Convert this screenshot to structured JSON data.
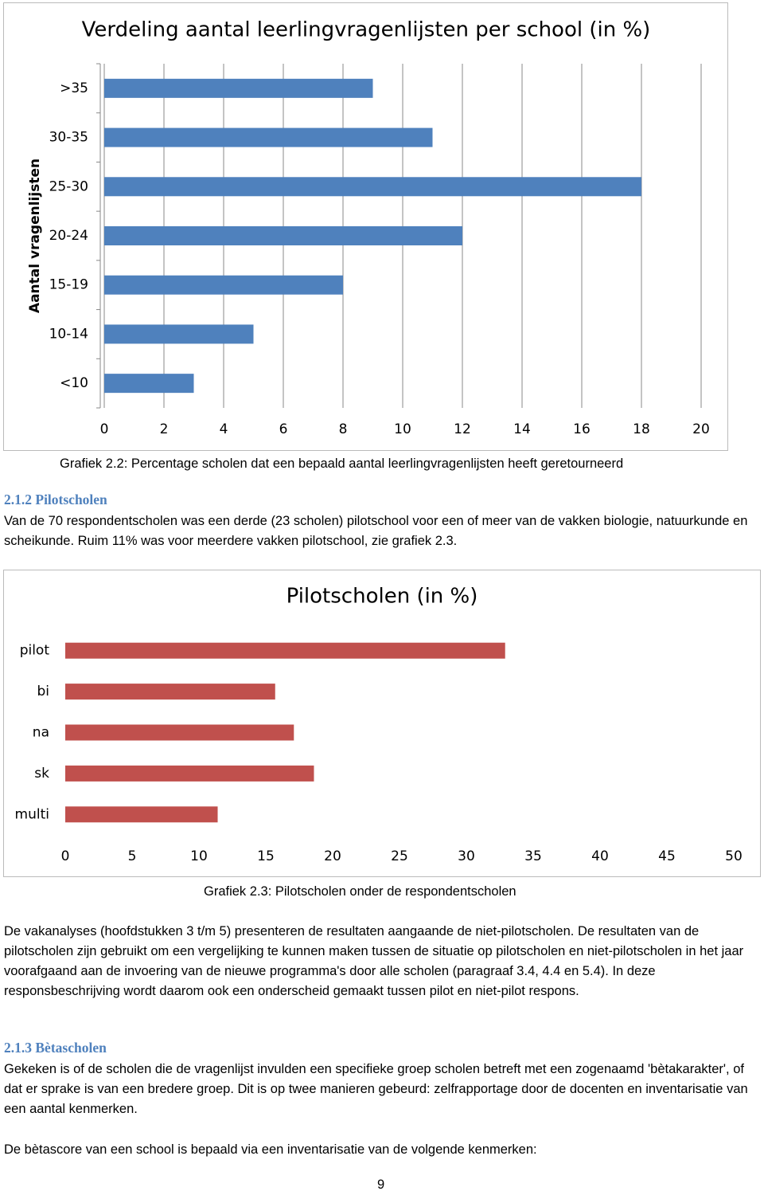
{
  "chart_data": [
    {
      "type": "bar",
      "orientation": "horizontal",
      "title": "Verdeling aantal leerlingvragenlijsten per school (in %)",
      "y_label": "Aantal vragenlijsten",
      "categories": [
        ">35",
        "30-35",
        "25-30",
        "20-24",
        "15-19",
        "10-14",
        "<10"
      ],
      "values": [
        9,
        11,
        18,
        12,
        8,
        5,
        3
      ],
      "color": "#4f81bd",
      "xlim": [
        0,
        20
      ],
      "xticks": [
        0,
        2,
        4,
        6,
        8,
        10,
        12,
        14,
        16,
        18,
        20
      ],
      "grid": true
    },
    {
      "type": "bar",
      "orientation": "horizontal",
      "title": "Pilotscholen (in %)",
      "categories": [
        "pilot",
        "bi",
        "na",
        "sk",
        "multi"
      ],
      "values": [
        32.9,
        15.7,
        17.1,
        18.6,
        11.4
      ],
      "color": "#c0504d",
      "xlim": [
        0,
        50
      ],
      "xticks": [
        0,
        5,
        10,
        15,
        20,
        25,
        30,
        35,
        40,
        45,
        50
      ],
      "grid": false
    }
  ],
  "captions": [
    "Grafiek 2.2: Percentage scholen dat een bepaald aantal leerlingvragenlijsten heeft geretourneerd",
    "Grafiek 2.3: Pilotscholen onder de respondentscholen"
  ],
  "section_pilot": {
    "heading": "2.1.2 Pilotscholen",
    "paragraphs": [
      "Van de 70 respondentscholen was een derde (23 scholen) pilotschool voor een of meer van de vakken biologie, natuurkunde en scheikunde. Ruim 11% was voor meerdere vakken pilotschool, zie grafiek 2.3.",
      "De vakanalyses (hoofdstukken 3 t/m 5) presenteren de resultaten aangaande de niet-pilotscholen. De resultaten van de pilotscholen zijn gebruikt om een vergelijking te kunnen maken tussen de situatie op pilotscholen en niet-pilotscholen in het jaar voorafgaand aan de invoering van de nieuwe programma's door alle scholen (paragraaf 3.4, 4.4 en 5.4). In deze responsbeschrijving wordt daarom ook een onderscheid gemaakt tussen pilot en niet-pilot respons."
    ]
  },
  "section_beta": {
    "heading": "2.1.3 Bètascholen",
    "paragraphs": [
      "Gekeken is of de scholen die de vragenlijst invulden een specifieke groep scholen betreft met een zogenaamd 'bètakarakter', of dat er sprake is van een bredere groep. Dit is op twee manieren gebeurd: zelfrapportage door de docenten en inventarisatie van een aantal kenmerken.",
      "De bètascore van een school is bepaald via een inventarisatie van de volgende kenmerken:"
    ]
  },
  "page_number": "9"
}
